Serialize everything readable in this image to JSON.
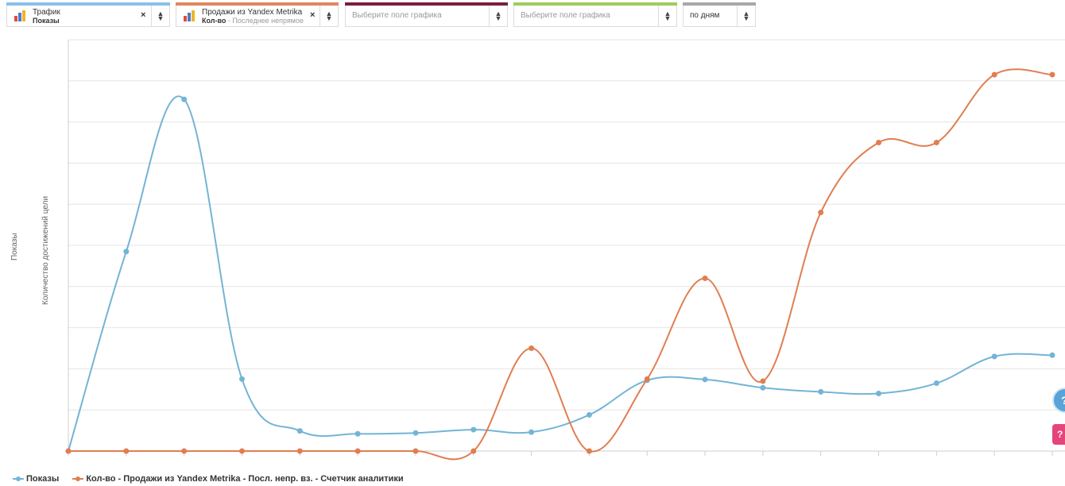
{
  "selectors": [
    {
      "line1": "Трафик",
      "line2": "Показы",
      "sub": "",
      "has_icon": true,
      "clear": "×",
      "bar_color": "#8cc0e8"
    },
    {
      "line1": "Продажи из Yandex Metrika",
      "line2": "Кол-во",
      "sub": " - Последнее непрямое...",
      "has_icon": true,
      "clear": "×",
      "bar_color": "#e0875e"
    },
    {
      "placeholder": "Выберите поле графика",
      "bar_color": "#7a1f3d"
    },
    {
      "placeholder": "Выберите поле графика",
      "bar_color": "#9fcc5e"
    },
    {
      "value": "по дням",
      "bar_color": "#a8a8a8"
    }
  ],
  "icons": {
    "chart_icon": "bar-chart-icon",
    "clear_icon": "close-icon",
    "sort_icon": "sort-arrows-icon",
    "help_icon": "help-icon"
  },
  "axis_labels": {
    "left": "Показы",
    "right": "Количество достижений цели"
  },
  "help": {
    "blue": "?",
    "pink": "?"
  },
  "chart_data": {
    "type": "line",
    "x_count": 18,
    "ylim": [
      0,
      100
    ],
    "series": [
      {
        "name": "Показы",
        "color": "#74b4d6",
        "values": [
          0,
          48.5,
          85.5,
          17.5,
          4.9,
          4.2,
          4.4,
          5.2,
          4.6,
          8.8,
          17.2,
          17.4,
          15.4,
          14.4,
          14.0,
          16.5,
          23.0,
          23.3
        ]
      },
      {
        "name": "Кол-во - Продажи из Yandex Metrika - Посл. непр. вз. - Счетчик аналитики",
        "color": "#e07e52",
        "values": [
          0,
          0,
          0,
          0,
          0,
          0,
          0,
          0,
          25.0,
          0,
          17.5,
          42.0,
          17.0,
          58.0,
          75.0,
          75.0,
          91.5,
          91.5
        ]
      }
    ],
    "grid": true
  }
}
